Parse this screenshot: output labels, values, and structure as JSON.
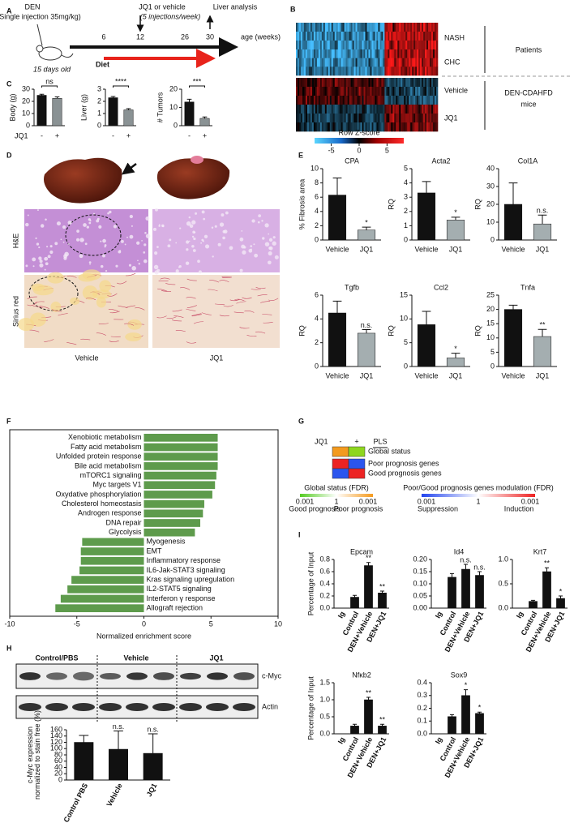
{
  "panel_labels": [
    "A",
    "B",
    "C",
    "D",
    "E",
    "F",
    "G",
    "H",
    "I"
  ],
  "a": {
    "den": "DEN",
    "injection": "(Single injection 35mg/kg)",
    "age_label": "15 days old",
    "treatment": "JQ1 or vehicle",
    "schedule": "(5 injections/week)",
    "analysis": "Liver analysis",
    "timeline_ticks": [
      6,
      12,
      26,
      30
    ],
    "axis_label": "age (weeks)",
    "diet": "Diet"
  },
  "b": {
    "rows": [
      "NASH",
      "CHC",
      "Vehicle",
      "JQ1"
    ],
    "groups": [
      [
        "Patients"
      ],
      [
        "DEN-CDAHFD",
        "mice"
      ]
    ],
    "colorbar_title": "Row Z-score",
    "colorbar_ticks": [
      -5,
      0,
      5
    ],
    "colorbar_lim": [
      -8,
      8
    ]
  },
  "c": {
    "x_title": "JQ1",
    "charts": [
      {
        "ylabel": "Body (g)",
        "categories": [
          "-",
          "+"
        ],
        "values": [
          25,
          22.5
        ],
        "errors": [
          0.8,
          1.2
        ],
        "colors": [
          "#111111",
          "#8a9294"
        ],
        "significance": "ns",
        "ylim": [
          0,
          30
        ],
        "yticks": [
          0,
          10,
          20,
          30
        ]
      },
      {
        "ylabel": "Liver (g)",
        "categories": [
          "-",
          "+"
        ],
        "values": [
          2.3,
          1.3
        ],
        "errors": [
          0.1,
          0.1
        ],
        "colors": [
          "#111111",
          "#8a9294"
        ],
        "significance": "****",
        "ylim": [
          0,
          3
        ],
        "yticks": [
          0,
          1,
          2,
          3
        ]
      },
      {
        "ylabel": "# Tumors",
        "categories": [
          "-",
          "+"
        ],
        "values": [
          13,
          4
        ],
        "errors": [
          1.5,
          0.8
        ],
        "colors": [
          "#111111",
          "#8a9294"
        ],
        "significance": "***",
        "ylim": [
          0,
          20
        ],
        "yticks": [
          0,
          10,
          20
        ]
      }
    ]
  },
  "d": {
    "rows": [
      "H&E",
      "Sirius red"
    ],
    "columns": [
      "Vehicle",
      "JQ1"
    ]
  },
  "e": {
    "charts": [
      {
        "title": "CPA",
        "ylabel": "% Fibrosis area",
        "categories": [
          "Vehicle",
          "JQ1"
        ],
        "values": [
          6.3,
          1.4
        ],
        "errors": [
          2.4,
          0.4
        ],
        "colors": [
          "#111111",
          "#a4aeb0"
        ],
        "significance": [
          null,
          "*"
        ],
        "ylim": [
          0,
          10
        ],
        "yticks": [
          0,
          2,
          4,
          6,
          8,
          10
        ]
      },
      {
        "title": "Acta2",
        "ylabel": "RQ",
        "categories": [
          "Vehicle",
          "JQ1"
        ],
        "values": [
          3.3,
          1.4
        ],
        "errors": [
          0.8,
          0.2
        ],
        "colors": [
          "#111111",
          "#a4aeb0"
        ],
        "significance": [
          null,
          "*"
        ],
        "ylim": [
          0,
          5
        ],
        "yticks": [
          0,
          1,
          2,
          3,
          4,
          5
        ]
      },
      {
        "title": "Col1A",
        "ylabel": "RQ",
        "categories": [
          "Vehicle",
          "JQ1"
        ],
        "values": [
          20,
          9
        ],
        "errors": [
          12,
          5
        ],
        "colors": [
          "#111111",
          "#a4aeb0"
        ],
        "significance": [
          null,
          "n.s."
        ],
        "ylim": [
          0,
          40
        ],
        "yticks": [
          0,
          10,
          20,
          30,
          40
        ]
      },
      {
        "title": "Tgfb",
        "ylabel": "RQ",
        "categories": [
          "Vehicle",
          "JQ1"
        ],
        "values": [
          4.5,
          2.8
        ],
        "errors": [
          1.0,
          0.3
        ],
        "colors": [
          "#111111",
          "#a4aeb0"
        ],
        "significance": [
          null,
          "n.s."
        ],
        "ylim": [
          0,
          6
        ],
        "yticks": [
          0,
          2,
          4,
          6
        ]
      },
      {
        "title": "Ccl2",
        "ylabel": "RQ",
        "categories": [
          "Vehicle",
          "JQ1"
        ],
        "values": [
          8.8,
          1.8
        ],
        "errors": [
          2.8,
          1.0
        ],
        "colors": [
          "#111111",
          "#a4aeb0"
        ],
        "significance": [
          null,
          "*"
        ],
        "ylim": [
          0,
          15
        ],
        "yticks": [
          0,
          5,
          10,
          15
        ]
      },
      {
        "title": "Tnfa",
        "ylabel": "RQ",
        "categories": [
          "Vehicle",
          "JQ1"
        ],
        "values": [
          20,
          10.5
        ],
        "errors": [
          1.5,
          2.5
        ],
        "colors": [
          "#111111",
          "#a4aeb0"
        ],
        "significance": [
          null,
          "**"
        ],
        "ylim": [
          0,
          25
        ],
        "yticks": [
          0,
          5,
          10,
          15,
          20,
          25
        ]
      }
    ]
  },
  "f": {
    "type": "bar",
    "orientation": "horizontal",
    "categories": [
      "Xenobiotic metabolism",
      "Fatty acid metabolism",
      "Unfolded protein response",
      "Bile acid metabolism",
      "mTORC1 signaling",
      "Myc targets V1",
      "Oxydative phosphorylation",
      "Cholesterol homeostasis",
      "Androgen response",
      "DNA repair",
      "Glycolysis",
      "Myogenesis",
      "EMT",
      "Inflammatory response",
      "IL6-Jak-STAT3 signaling",
      "Kras signaling upregulation",
      "IL2-STAT5 signaling",
      "Interferon γ response",
      "Allograft rejection"
    ],
    "values": [
      5.5,
      5.5,
      5.5,
      5.5,
      5.4,
      5.3,
      5.1,
      4.5,
      4.4,
      4.2,
      3.8,
      -4.6,
      -4.7,
      -4.7,
      -4.8,
      -5.4,
      -5.7,
      -6.2,
      -6.6
    ],
    "label_colors": [
      "#5cc832",
      "#5cc832",
      "#222222",
      "#5cc832",
      "#222222",
      "#5cc832",
      "#5cc832",
      "#222222",
      "#222222",
      "#e32a20",
      "#222222",
      "#e32a20",
      "#e32a20",
      "#e32a20",
      "#222222",
      "#222222",
      "#e32a20",
      "#222222",
      "#e32a20"
    ],
    "color": "#5e9b4c",
    "xlim": [
      -10,
      10
    ],
    "xticks": [
      -10,
      -5,
      0,
      5,
      10
    ],
    "xlabel": "Normalized enrichment score"
  },
  "g": {
    "column_title": "JQ1",
    "columns": [
      "-",
      "+"
    ],
    "method": "PLS",
    "rows": [
      "Global status",
      "Poor prognosis genes",
      "Good prognosis genes"
    ],
    "legends": [
      {
        "title": "Global status (FDR)",
        "ticks": [
          0.001,
          1,
          0.001
        ],
        "ends": [
          "Good prognosis",
          "Poor prognosis"
        ]
      },
      {
        "title": "Poor/Good prognosis genes modulation (FDR)",
        "ticks": [
          0.001,
          1,
          0.001
        ],
        "ends": [
          "Suppression",
          "Induction"
        ]
      }
    ]
  },
  "h": {
    "blot_groups": [
      "Control/PBS",
      "Vehicle",
      "JQ1"
    ],
    "blot_rows": [
      "c-Myc",
      "Actin"
    ],
    "chart": {
      "ylabel": [
        "c-Myc expression",
        "normalized to stain free (%)"
      ],
      "categories": [
        "Control PBS",
        "Vehicle",
        "JQ1"
      ],
      "values": [
        120,
        98,
        85
      ],
      "errors": [
        22,
        58,
        62
      ],
      "color": "#111111",
      "significance": [
        null,
        "n.s.",
        "n.s."
      ],
      "ylim": [
        0,
        160
      ],
      "yticks": [
        0,
        20,
        40,
        60,
        80,
        100,
        120,
        140,
        160
      ]
    }
  },
  "i": {
    "ylabel": "Percentage of Input",
    "charts": [
      {
        "title": "Epcam",
        "categories": [
          "Ig",
          "Control",
          "DEN+Vehicle",
          "DEN+JQ1"
        ],
        "values": [
          0,
          0.18,
          0.7,
          0.25
        ],
        "errors": [
          0,
          0.03,
          0.05,
          0.03
        ],
        "color": "#111111",
        "significance": [
          null,
          null,
          "**",
          "**"
        ],
        "ylim": [
          0,
          0.8
        ],
        "yticks": [
          {
            "value": 0,
            "label": "0.0"
          },
          0.2,
          0.4,
          0.6,
          0.8
        ]
      },
      {
        "title": "Id4",
        "categories": [
          "Ig",
          "Control",
          "DEN+Vehicle",
          "DEN+JQ1"
        ],
        "values": [
          0,
          0.127,
          0.16,
          0.135
        ],
        "errors": [
          0,
          0.015,
          0.02,
          0.015
        ],
        "color": "#111111",
        "significance": [
          null,
          null,
          "n.s.",
          "n.s."
        ],
        "ylim": [
          0,
          0.2
        ],
        "yticks": [
          {
            "value": 0,
            "label": "0.00"
          },
          0.05,
          {
            "value": 0.1,
            "label": "0.10"
          },
          0.15,
          {
            "value": 0.2,
            "label": "0.20"
          }
        ]
      },
      {
        "title": "Krt7",
        "categories": [
          "Ig",
          "Control",
          "DEN+Vehicle",
          "DEN+JQ1"
        ],
        "values": [
          0,
          0.14,
          0.75,
          0.2
        ],
        "errors": [
          0,
          0.02,
          0.08,
          0.05
        ],
        "color": "#111111",
        "significance": [
          null,
          null,
          "**",
          "*"
        ],
        "ylim": [
          0,
          1
        ],
        "yticks": [
          {
            "value": 0,
            "label": "0.0"
          },
          0.5,
          {
            "value": 1,
            "label": "1.0"
          }
        ]
      },
      {
        "title": "Nfκb2",
        "categories": [
          "Ig",
          "Control",
          "DEN+Vehicle",
          "DEN+JQ1"
        ],
        "values": [
          0,
          0.23,
          1.0,
          0.23
        ],
        "errors": [
          0,
          0.05,
          0.07,
          0.05
        ],
        "color": "#111111",
        "significance": [
          null,
          null,
          "**",
          "**"
        ],
        "ylim": [
          0,
          1.5
        ],
        "yticks": [
          {
            "value": 0,
            "label": "0.0"
          },
          0.5,
          {
            "value": 1,
            "label": "1.0"
          },
          1.5
        ]
      },
      {
        "title": "Sox9",
        "categories": [
          "Ig",
          "Control",
          "DEN+Vehicle",
          "DEN+JQ1"
        ],
        "values": [
          0,
          0.135,
          0.3,
          0.16
        ],
        "errors": [
          0,
          0.015,
          0.045,
          0.01
        ],
        "color": "#111111",
        "significance": [
          null,
          null,
          "*",
          "*"
        ],
        "ylim": [
          0,
          0.4
        ],
        "yticks": [
          {
            "value": 0,
            "label": "0.0"
          },
          0.1,
          0.2,
          0.3,
          0.4
        ]
      }
    ]
  }
}
